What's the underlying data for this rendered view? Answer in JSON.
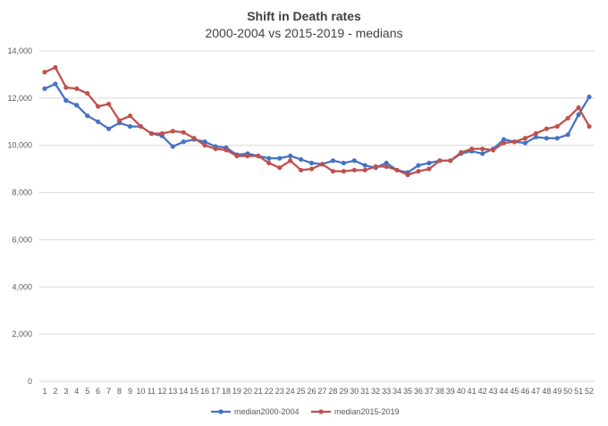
{
  "chart_data": {
    "type": "line",
    "title": "Shift in Death rates",
    "subtitle": "2000-2004 vs 2015-2019 - medians",
    "xlabel": "",
    "ylabel": "",
    "ylim": [
      0,
      14000
    ],
    "y_ticks": [
      "0",
      "2,000",
      "4,000",
      "6,000",
      "8,000",
      "10,000",
      "12,000",
      "14,000"
    ],
    "y_tick_values": [
      0,
      2000,
      4000,
      6000,
      8000,
      10000,
      12000,
      14000
    ],
    "x": [
      "1",
      "2",
      "3",
      "4",
      "5",
      "6",
      "7",
      "8",
      "9",
      "10",
      "11",
      "12",
      "13",
      "14",
      "15",
      "16",
      "17",
      "18",
      "19",
      "20",
      "21",
      "22",
      "23",
      "24",
      "25",
      "26",
      "27",
      "28",
      "29",
      "30",
      "31",
      "32",
      "33",
      "34",
      "35",
      "36",
      "37",
      "38",
      "39",
      "40",
      "41",
      "42",
      "43",
      "44",
      "45",
      "46",
      "47",
      "48",
      "49",
      "50",
      "51",
      "52"
    ],
    "grid": "horizontal",
    "legend_position": "bottom",
    "series": [
      {
        "name": "median2000-2004",
        "color": "#4472c4",
        "values": [
          12400,
          12600,
          11900,
          11700,
          11250,
          11000,
          10700,
          10950,
          10800,
          10800,
          10500,
          10400,
          9950,
          10150,
          10250,
          10150,
          9950,
          9900,
          9600,
          9650,
          9550,
          9450,
          9450,
          9550,
          9400,
          9250,
          9200,
          9350,
          9250,
          9350,
          9150,
          9050,
          9250,
          8950,
          8850,
          9150,
          9250,
          9350,
          9350,
          9650,
          9750,
          9650,
          9850,
          10250,
          10150,
          10100,
          10350,
          10300,
          10300,
          10450,
          11300,
          12050
        ]
      },
      {
        "name": "median2015-2019",
        "color": "#c0504d",
        "values": [
          13100,
          13300,
          12450,
          12400,
          12200,
          11650,
          11750,
          11050,
          11250,
          10800,
          10500,
          10500,
          10600,
          10550,
          10300,
          10000,
          9850,
          9800,
          9550,
          9550,
          9550,
          9250,
          9050,
          9350,
          8950,
          9000,
          9200,
          8900,
          8900,
          8950,
          8950,
          9100,
          9100,
          8950,
          8750,
          8900,
          9000,
          9350,
          9350,
          9700,
          9850,
          9850,
          9800,
          10100,
          10150,
          10300,
          10500,
          10700,
          10800,
          11150,
          11600,
          10800
        ]
      }
    ]
  }
}
